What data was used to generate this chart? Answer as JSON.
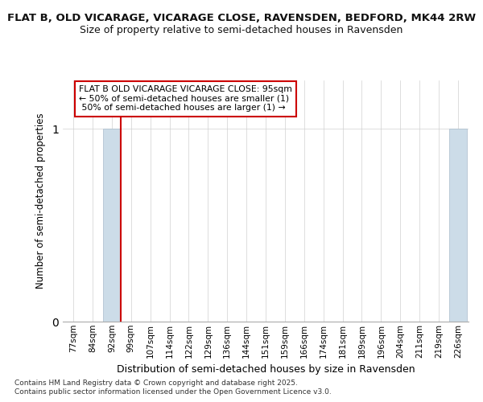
{
  "title_line1": "FLAT B, OLD VICARAGE, VICARAGE CLOSE, RAVENSDEN, BEDFORD, MK44 2RW",
  "title_line2": "Size of property relative to semi-detached houses in Ravensden",
  "xlabel": "Distribution of semi-detached houses by size in Ravensden",
  "ylabel": "Number of semi-detached properties",
  "footer_line1": "Contains HM Land Registry data © Crown copyright and database right 2025.",
  "footer_line2": "Contains public sector information licensed under the Open Government Licence v3.0.",
  "categories": [
    "77sqm",
    "84sqm",
    "92sqm",
    "99sqm",
    "107sqm",
    "114sqm",
    "122sqm",
    "129sqm",
    "136sqm",
    "144sqm",
    "151sqm",
    "159sqm",
    "166sqm",
    "174sqm",
    "181sqm",
    "189sqm",
    "196sqm",
    "204sqm",
    "211sqm",
    "219sqm",
    "226sqm"
  ],
  "values": [
    0,
    0,
    1,
    0,
    0,
    0,
    0,
    0,
    0,
    0,
    0,
    0,
    0,
    0,
    0,
    0,
    0,
    0,
    0,
    0,
    1
  ],
  "bar_color": "#ccdce8",
  "bar_edge_color": "#aabccc",
  "property_bin_index": 2,
  "red_line_color": "#cc0000",
  "annotation_text": "FLAT B OLD VICARAGE VICARAGE CLOSE: 95sqm\n← 50% of semi-detached houses are smaller (1)\n 50% of semi-detached houses are larger (1) →",
  "annotation_box_color": "#ffffff",
  "annotation_box_edge": "#cc0000",
  "yticks": [
    0,
    1
  ],
  "background_color": "#ffffff",
  "grid_color": "#d0d0d0"
}
